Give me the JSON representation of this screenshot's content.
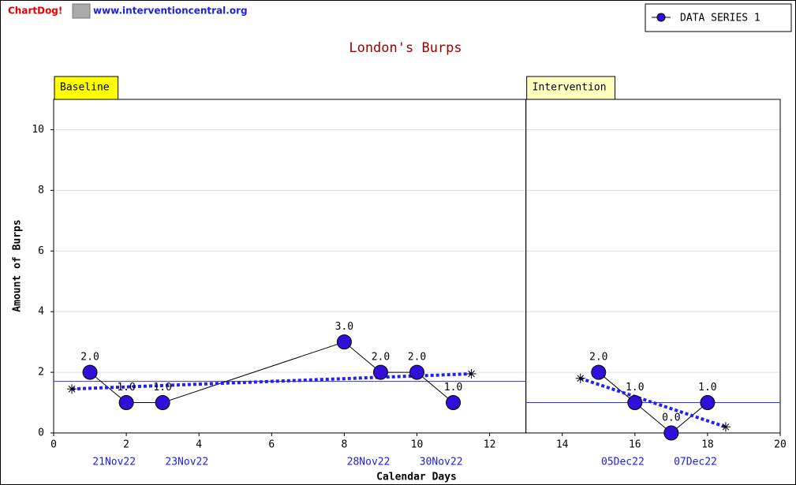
{
  "header": {
    "logo": "ChartDog!",
    "site": "www.interventioncentral.org"
  },
  "chart_data": {
    "type": "line",
    "title": "London's Burps",
    "x_label": "Calendar Days",
    "y_label": "Amount of Burps",
    "xlim": [
      0,
      20
    ],
    "ylim": [
      0,
      11
    ],
    "xticks": [
      0,
      2,
      4,
      6,
      8,
      10,
      12,
      14,
      16,
      18,
      20
    ],
    "yticks": [
      0,
      2,
      4,
      6,
      8,
      10
    ],
    "date_ticks": [
      {
        "value": 2,
        "label": "21Nov22"
      },
      {
        "value": 4,
        "label": "23Nov22"
      },
      {
        "value": 9,
        "label": "28Nov22"
      },
      {
        "value": 11,
        "label": "30Nov22"
      },
      {
        "value": 16,
        "label": "05Dec22"
      },
      {
        "value": 18,
        "label": "07Dec22"
      }
    ],
    "grid": true,
    "legend": "top-right",
    "x": [
      1,
      2,
      3,
      8,
      9,
      10,
      11,
      15,
      16,
      17,
      18
    ],
    "series": [
      {
        "name": "DATA SERIES 1",
        "color": "#3010d8",
        "values": [
          2,
          1,
          1,
          3,
          2,
          2,
          1,
          2,
          1,
          0,
          1
        ],
        "value_labels": [
          "2.0",
          "1.0",
          "1.0",
          "3.0",
          "2.0",
          "2.0",
          "1.0",
          "2.0",
          "1.0",
          "0.0",
          "1.0"
        ]
      }
    ],
    "phases": [
      {
        "label": "Baseline",
        "start": 0,
        "end": 13,
        "label_color": "#ffff00",
        "mean": 1.7,
        "trend": {
          "x": [
            0.5,
            11.5
          ],
          "y": [
            1.45,
            1.95
          ]
        }
      },
      {
        "label": "Intervention",
        "start": 13,
        "end": 20,
        "label_color": "#ffffc0",
        "mean": 1.0,
        "trend": {
          "x": [
            14.5,
            18.5
          ],
          "y": [
            1.8,
            0.2
          ]
        }
      }
    ]
  }
}
